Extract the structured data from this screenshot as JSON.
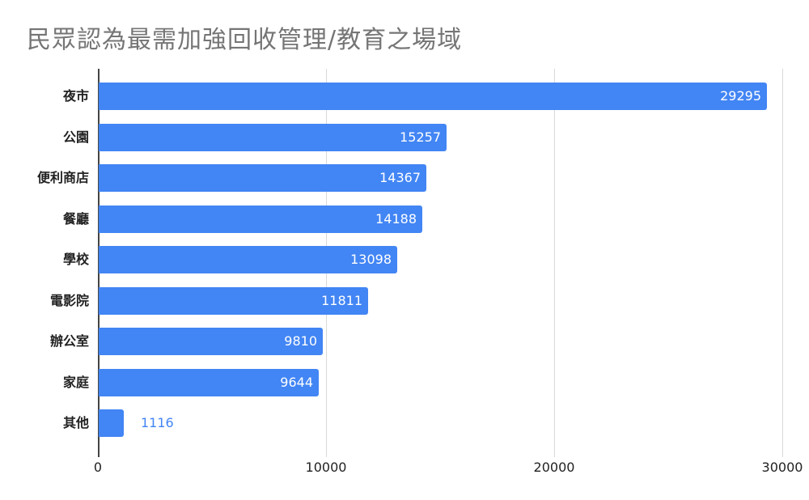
{
  "chart_data": {
    "type": "bar",
    "orientation": "horizontal",
    "title": "民眾認為最需加強回收管理/教育之場域",
    "categories": [
      "夜市",
      "公園",
      "便利商店",
      "餐廳",
      "學校",
      "電影院",
      "辦公室",
      "家庭",
      "其他"
    ],
    "values": [
      29295,
      15257,
      14367,
      14188,
      13098,
      11811,
      9810,
      9644,
      1116
    ],
    "xlabel": "",
    "ylabel": "",
    "xlim": [
      0,
      30000
    ],
    "x_ticks": [
      "0",
      "10000",
      "20000",
      "30000"
    ],
    "grid": true,
    "legend": "none",
    "data_labels": true,
    "bar_color": "#4285f4"
  },
  "labels": {
    "bars": [
      "29295",
      "15257",
      "14367",
      "14188",
      "13098",
      "11811",
      "9810",
      "9644",
      "1116"
    ]
  }
}
